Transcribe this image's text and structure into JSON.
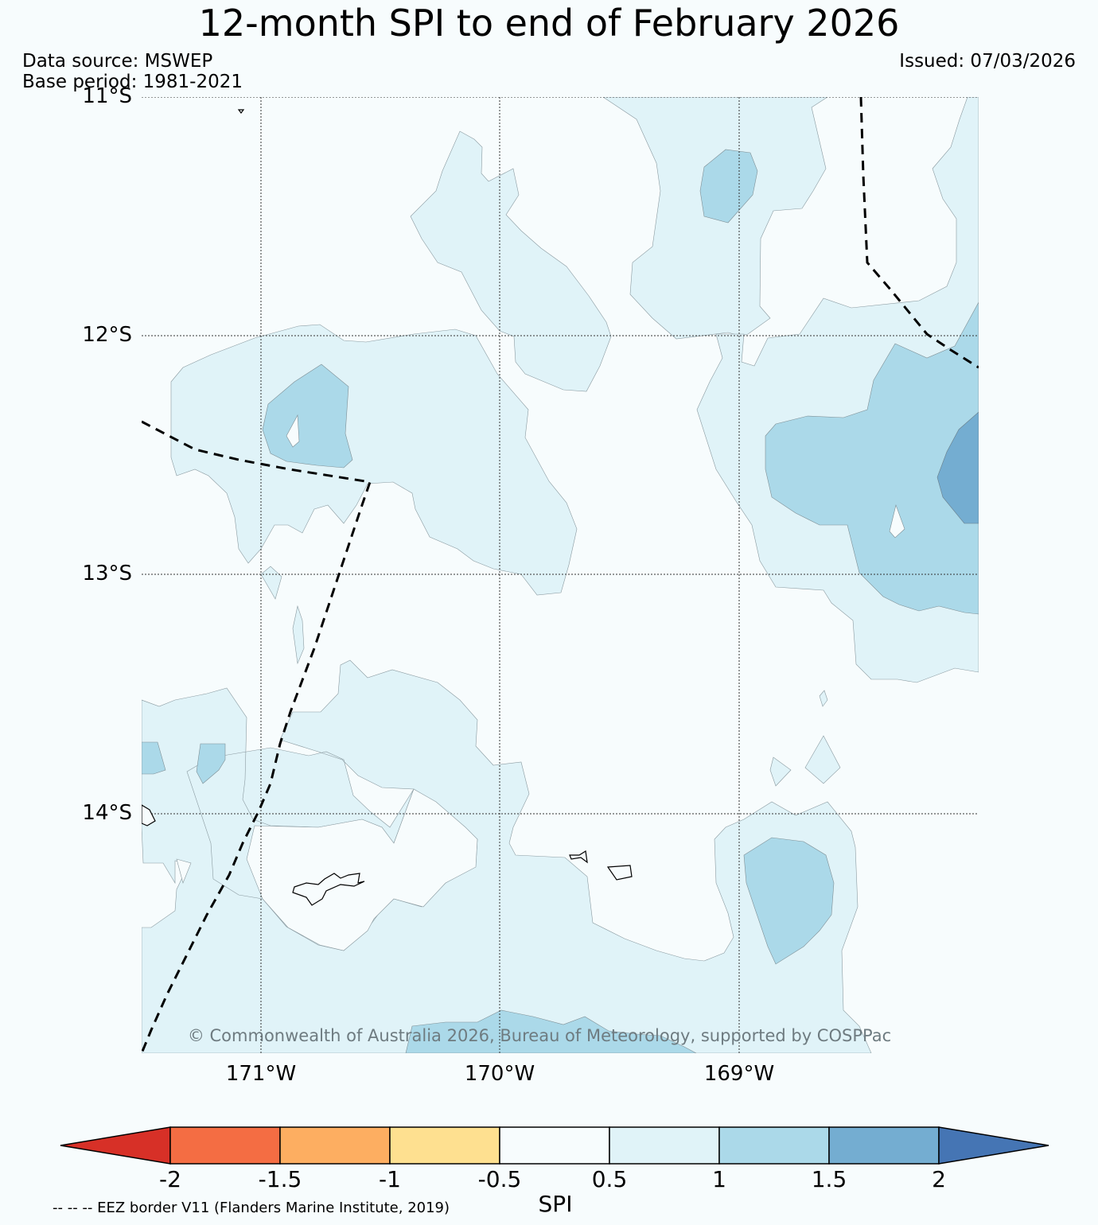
{
  "header": {
    "title": "12-month SPI to end of February 2026",
    "data_source": "Data source: MSWEP",
    "base_period": "Base period: 1981-2021",
    "issued": "Issued: 07/03/2026"
  },
  "map": {
    "latitude_labels": [
      "11°S",
      "12°S",
      "13°S",
      "14°S"
    ],
    "longitude_labels": [
      "171°W",
      "170°W",
      "169°W"
    ],
    "copyright": "© Commonwealth of Australia 2026, Bureau of Meteorology, supported by COSPPac",
    "border_color": "#000000"
  },
  "colorbar": {
    "label": "SPI",
    "ticks": [
      "-2",
      "-1.5",
      "-1",
      "-0.5",
      "0.5",
      "1",
      "1.5",
      "2"
    ],
    "low_extend_color": "#d73027",
    "high_extend_color": "#4575b4",
    "segment_colors": [
      "#f46d43",
      "#fdae61",
      "#fee090",
      "#f7fcfd",
      "#e0f3f8",
      "#abd9e9",
      "#74add1"
    ]
  },
  "legend": {
    "eez_note": "-- -- -- EEZ border V11 (Flanders Marine Institute, 2019)"
  }
}
